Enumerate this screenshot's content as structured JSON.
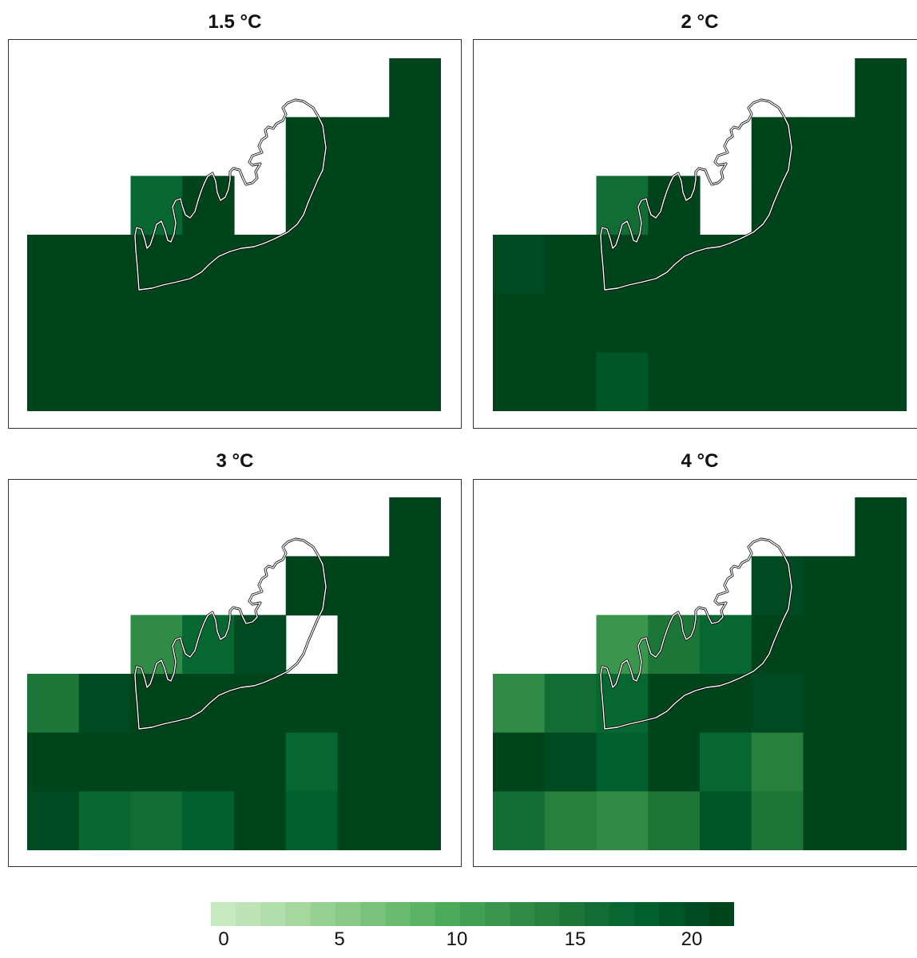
{
  "chart_data": {
    "type": "heatmap",
    "panels": [
      {
        "title": "1.5 °C",
        "grid": [
          [
            null,
            null,
            null,
            null,
            null,
            null,
            null,
            22
          ],
          [
            null,
            null,
            null,
            null,
            null,
            22,
            22,
            22
          ],
          [
            null,
            null,
            17,
            22,
            null,
            22,
            22,
            22
          ],
          [
            22,
            22,
            22,
            22,
            22,
            22,
            22,
            22
          ],
          [
            22,
            22,
            22,
            22,
            22,
            22,
            22,
            22
          ],
          [
            22,
            22,
            21,
            22,
            22,
            22,
            22,
            22
          ]
        ]
      },
      {
        "title": "2 °C",
        "grid": [
          [
            null,
            null,
            null,
            null,
            null,
            null,
            null,
            22
          ],
          [
            null,
            null,
            null,
            null,
            null,
            22,
            22,
            22
          ],
          [
            null,
            null,
            16,
            22,
            null,
            22,
            22,
            22
          ],
          [
            20,
            22,
            22,
            22,
            22,
            22,
            22,
            22
          ],
          [
            22,
            22,
            22,
            22,
            22,
            22,
            22,
            22
          ],
          [
            22,
            21,
            19,
            22,
            22,
            22,
            22,
            22
          ]
        ]
      },
      {
        "title": "3 °C",
        "grid": [
          [
            null,
            null,
            null,
            null,
            null,
            null,
            null,
            22
          ],
          [
            null,
            null,
            null,
            null,
            null,
            22,
            22,
            22
          ],
          [
            null,
            null,
            13,
            17,
            20,
            null,
            22,
            22
          ],
          [
            15,
            20,
            21,
            21,
            22,
            22,
            22,
            22
          ],
          [
            22,
            22,
            21,
            22,
            21,
            17,
            22,
            22
          ],
          [
            20,
            17,
            16,
            18,
            22,
            18,
            22,
            22
          ]
        ]
      },
      {
        "title": "4 °C",
        "grid": [
          [
            null,
            null,
            null,
            null,
            null,
            null,
            null,
            22
          ],
          [
            null,
            null,
            null,
            null,
            null,
            20,
            22,
            22
          ],
          [
            null,
            null,
            12,
            15,
            17,
            22,
            22,
            22
          ],
          [
            13,
            16,
            17,
            21,
            22,
            20,
            22,
            22
          ],
          [
            21,
            20,
            18,
            22,
            17,
            14,
            22,
            22
          ],
          [
            16,
            14,
            13,
            15,
            19,
            15,
            22,
            22
          ]
        ]
      }
    ],
    "legend": {
      "ticks": [
        "0",
        "5",
        "10",
        "15",
        "20"
      ],
      "min": 0,
      "max": 22,
      "colors": [
        "#c7e9c0",
        "#bde3b7",
        "#b2ddac",
        "#a5d79f",
        "#97d093",
        "#89ca87",
        "#7ac27b",
        "#6bbb6f",
        "#5cb364",
        "#4cab5a",
        "#41a052",
        "#39964c",
        "#2f8b45",
        "#27803e",
        "#1c7637",
        "#116d33",
        "#066830",
        "#005f2c",
        "#005526",
        "#004a21",
        "#00441b"
      ]
    }
  }
}
